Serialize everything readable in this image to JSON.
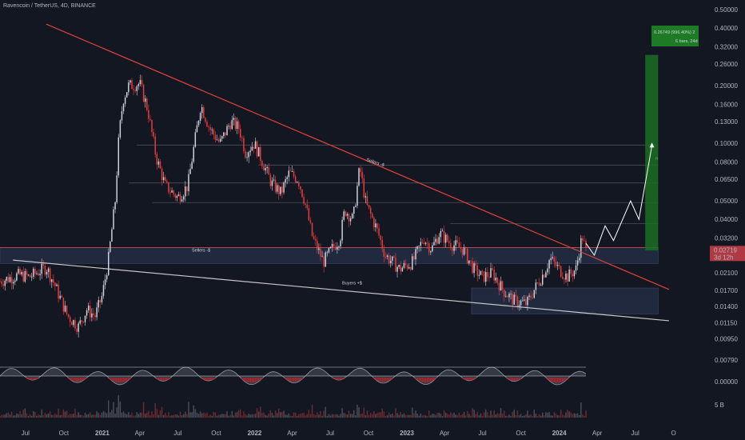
{
  "header": {
    "title": "Ravencoin / TetherUS, 4D, BINANCE"
  },
  "colors": {
    "bg": "#131722",
    "up": "#d1d4dc",
    "down": "#ef3b3b",
    "trendline": "#e0423a",
    "support_line": "#c8c8c8",
    "zone": "#263048",
    "target": "#1a6e22",
    "grid": "#555a66"
  },
  "chart_data": {
    "type": "candlestick",
    "scale": "log",
    "ylim": [
      0.0085,
      0.52
    ],
    "y_ticks": [
      "0.50000",
      "0.40000",
      "0.32000",
      "0.26000",
      "0.20000",
      "0.16000",
      "0.13000",
      "0.10000",
      "0.08000",
      "0.06500",
      "0.05000",
      "0.04000",
      "0.03200",
      "0.02600",
      "0.02100",
      "0.01700",
      "0.01400",
      "0.01150",
      "0.00950",
      "0.00790",
      "0.00000",
      "5 B"
    ],
    "x_ticks": [
      "Jul",
      "Oct",
      "2021",
      "Apr",
      "Jul",
      "Oct",
      "2022",
      "Apr",
      "Jul",
      "Oct",
      "2023",
      "Apr",
      "Jul",
      "Oct",
      "2024",
      "Apr",
      "Jul",
      "O"
    ],
    "bold_x_ticks": [
      "2021",
      "2022",
      "2023",
      "2024"
    ],
    "price_path": [
      [
        "2020-05-01",
        0.019
      ],
      [
        "2020-06-15",
        0.0205
      ],
      [
        "2020-07-10",
        0.02
      ],
      [
        "2020-08-20",
        0.0225
      ],
      [
        "2020-09-10",
        0.018
      ],
      [
        "2020-10-10",
        0.0125
      ],
      [
        "2020-11-05",
        0.011
      ],
      [
        "2020-11-25",
        0.0135
      ],
      [
        "2020-12-15",
        0.0125
      ],
      [
        "2021-01-01",
        0.016
      ],
      [
        "2021-01-15",
        0.024
      ],
      [
        "2021-02-01",
        0.05
      ],
      [
        "2021-02-10",
        0.11
      ],
      [
        "2021-02-20",
        0.17
      ],
      [
        "2021-03-05",
        0.2
      ],
      [
        "2021-04-01",
        0.205
      ],
      [
        "2021-04-20",
        0.15
      ],
      [
        "2021-05-10",
        0.085
      ],
      [
        "2021-06-01",
        0.06
      ],
      [
        "2021-07-01",
        0.052
      ],
      [
        "2021-07-25",
        0.06
      ],
      [
        "2021-08-10",
        0.1
      ],
      [
        "2021-08-25",
        0.16
      ],
      [
        "2021-09-15",
        0.12
      ],
      [
        "2021-10-10",
        0.1
      ],
      [
        "2021-11-05",
        0.13
      ],
      [
        "2021-11-25",
        0.12
      ],
      [
        "2021-12-10",
        0.09
      ],
      [
        "2021-12-31",
        0.1
      ],
      [
        "2022-01-20",
        0.08
      ],
      [
        "2022-02-10",
        0.062
      ],
      [
        "2022-03-05",
        0.055
      ],
      [
        "2022-03-25",
        0.07
      ],
      [
        "2022-04-15",
        0.065
      ],
      [
        "2022-05-01",
        0.05
      ],
      [
        "2022-05-20",
        0.032
      ],
      [
        "2022-06-15",
        0.024
      ],
      [
        "2022-07-05",
        0.028
      ],
      [
        "2022-07-25",
        0.032
      ],
      [
        "2022-08-05",
        0.045
      ],
      [
        "2022-08-25",
        0.04
      ],
      [
        "2022-09-10",
        0.075
      ],
      [
        "2022-09-25",
        0.048
      ],
      [
        "2022-10-20",
        0.036
      ],
      [
        "2022-11-10",
        0.026
      ],
      [
        "2022-12-15",
        0.022
      ],
      [
        "2023-01-15",
        0.024
      ],
      [
        "2023-02-10",
        0.032
      ],
      [
        "2023-03-01",
        0.028
      ],
      [
        "2023-03-20",
        0.034
      ],
      [
        "2023-04-15",
        0.03
      ],
      [
        "2023-05-15",
        0.028
      ],
      [
        "2023-06-10",
        0.022
      ],
      [
        "2023-07-01",
        0.02
      ],
      [
        "2023-07-25",
        0.021
      ],
      [
        "2023-08-20",
        0.017
      ],
      [
        "2023-09-15",
        0.015
      ],
      [
        "2023-10-15",
        0.0145
      ],
      [
        "2023-11-01",
        0.017
      ],
      [
        "2023-11-25",
        0.021
      ],
      [
        "2023-12-10",
        0.025
      ],
      [
        "2023-12-31",
        0.022
      ],
      [
        "2024-01-20",
        0.02
      ],
      [
        "2024-02-10",
        0.022
      ],
      [
        "2024-02-25",
        0.033
      ],
      [
        "2024-03-05",
        0.02719
      ]
    ],
    "trendline": [
      [
        "2020-08-20",
        0.42
      ],
      [
        "2024-09-20",
        0.0172
      ]
    ],
    "support_line": [
      [
        "2020-06-01",
        0.0245
      ],
      [
        "2024-09-20",
        0.0118
      ]
    ],
    "zones": [
      {
        "from": "2020-05-01",
        "to": "2024-08-25",
        "low": 0.0235,
        "high": 0.0285
      },
      {
        "from": "2023-06-05",
        "to": "2024-08-25",
        "low": 0.0128,
        "high": 0.0175
      }
    ],
    "hlines": [
      {
        "from": "2021-05-01",
        "to": "2024-08-25",
        "y": 0.049
      },
      {
        "from": "2021-03-05",
        "to": "2024-08-25",
        "y": 0.062
      },
      {
        "from": "2022-01-10",
        "to": "2024-08-25",
        "y": 0.077
      },
      {
        "from": "2021-03-25",
        "to": "2024-08-25",
        "y": 0.098
      },
      {
        "from": "2023-04-15",
        "to": "2024-08-25",
        "y": 0.038
      }
    ],
    "projection": [
      [
        "2024-03-05",
        0.03
      ],
      [
        "2024-03-25",
        0.026
      ],
      [
        "2024-04-20",
        0.037
      ],
      [
        "2024-05-10",
        0.031
      ],
      [
        "2024-06-20",
        0.05
      ],
      [
        "2024-07-10",
        0.04
      ],
      [
        "2024-08-10",
        0.097
      ]
    ],
    "target_box": {
      "from": "2024-07-25",
      "to": "2024-08-25",
      "low": 0.0275,
      "high": 0.29,
      "label_value": "0.26749 (996.40%) 2",
      "label_bars": "6 bars, 24d"
    },
    "price_tag": {
      "value": "0.02719",
      "countdown": "3d 12h"
    },
    "annotations": {
      "sellers_zone": "Sellers -$",
      "sellers_trend": "Sellers -$",
      "buyers": "Buyers +$"
    }
  }
}
